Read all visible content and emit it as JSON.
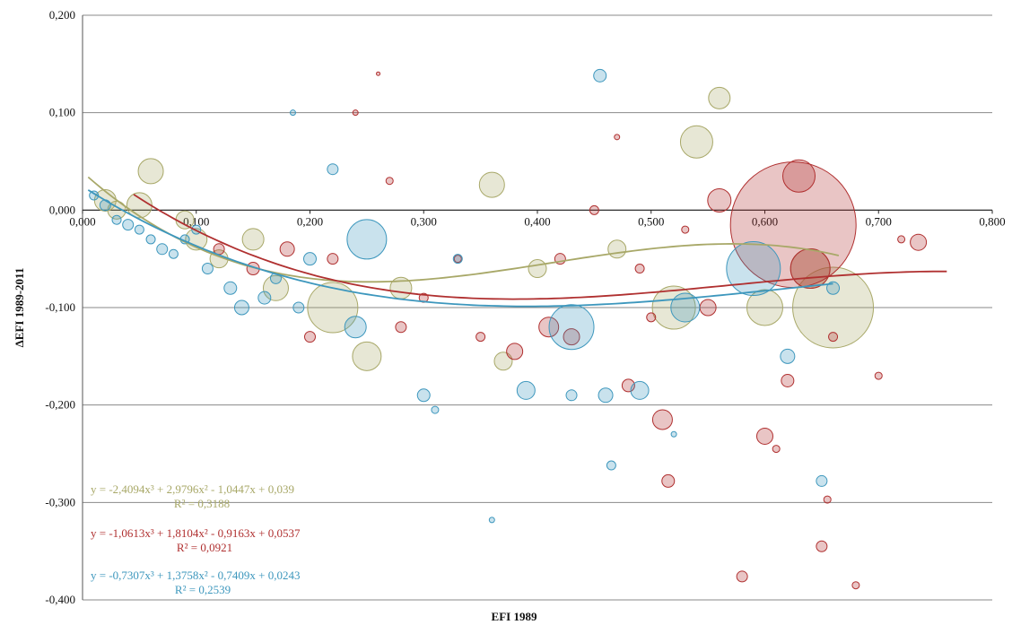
{
  "chart_data": {
    "type": "scatter",
    "xlabel": "EFI 1989",
    "ylabel": "ΔEFI 1989-2011",
    "xlim": [
      0,
      0.8
    ],
    "ylim": [
      -0.4,
      0.2
    ],
    "x_ticks": [
      "0,000",
      "0,100",
      "0,200",
      "0,300",
      "0,400",
      "0,500",
      "0,600",
      "0,700",
      "0,800"
    ],
    "y_ticks": [
      "0,200",
      "0,100",
      "0,000",
      "-0,100",
      "-0,200",
      "-0,300",
      "-0,400"
    ],
    "grid": "horizontal",
    "series": [
      {
        "color": "#a8a868",
        "trend": {
          "a": -2.4094,
          "b": 2.9796,
          "c": -1.0447,
          "d": 0.039,
          "x_range": [
            0.005,
            0.665
          ]
        },
        "equation": "y = -2,4094x³ + 2,9796x² - 1,0447x + 0,039",
        "r2": "R² = 0,3188",
        "points": [
          {
            "x": 0.02,
            "y": 0.01,
            "s": 12
          },
          {
            "x": 0.03,
            "y": 0.0,
            "s": 10
          },
          {
            "x": 0.05,
            "y": 0.005,
            "s": 14
          },
          {
            "x": 0.06,
            "y": 0.04,
            "s": 14
          },
          {
            "x": 0.09,
            "y": -0.01,
            "s": 10
          },
          {
            "x": 0.1,
            "y": -0.03,
            "s": 12
          },
          {
            "x": 0.12,
            "y": -0.05,
            "s": 10
          },
          {
            "x": 0.15,
            "y": -0.03,
            "s": 12
          },
          {
            "x": 0.17,
            "y": -0.08,
            "s": 14
          },
          {
            "x": 0.22,
            "y": -0.1,
            "s": 28
          },
          {
            "x": 0.25,
            "y": -0.15,
            "s": 16
          },
          {
            "x": 0.28,
            "y": -0.08,
            "s": 12
          },
          {
            "x": 0.36,
            "y": 0.026,
            "s": 14
          },
          {
            "x": 0.37,
            "y": -0.155,
            "s": 10
          },
          {
            "x": 0.4,
            "y": -0.06,
            "s": 10
          },
          {
            "x": 0.47,
            "y": -0.04,
            "s": 10
          },
          {
            "x": 0.52,
            "y": -0.1,
            "s": 24
          },
          {
            "x": 0.54,
            "y": 0.07,
            "s": 18
          },
          {
            "x": 0.56,
            "y": 0.115,
            "s": 12
          },
          {
            "x": 0.6,
            "y": -0.1,
            "s": 20
          },
          {
            "x": 0.66,
            "y": -0.1,
            "s": 45
          },
          {
            "x": 0.64,
            "y": -0.06,
            "s": 22
          }
        ]
      },
      {
        "color": "#b03030",
        "trend": {
          "a": -1.0613,
          "b": 1.8104,
          "c": -0.9163,
          "d": 0.0537,
          "x_range": [
            0.045,
            0.76
          ]
        },
        "equation": "y = -1,0613x³ + 1,8104x² - 0,9163x + 0,0537",
        "r2": "R² = 0,0921",
        "points": [
          {
            "x": 0.18,
            "y": -0.04,
            "s": 8
          },
          {
            "x": 0.22,
            "y": -0.05,
            "s": 6
          },
          {
            "x": 0.26,
            "y": 0.14,
            "s": 2
          },
          {
            "x": 0.24,
            "y": 0.1,
            "s": 3
          },
          {
            "x": 0.28,
            "y": -0.12,
            "s": 6
          },
          {
            "x": 0.3,
            "y": -0.09,
            "s": 5
          },
          {
            "x": 0.33,
            "y": -0.05,
            "s": 4
          },
          {
            "x": 0.35,
            "y": -0.13,
            "s": 5
          },
          {
            "x": 0.38,
            "y": -0.145,
            "s": 9
          },
          {
            "x": 0.41,
            "y": -0.12,
            "s": 11
          },
          {
            "x": 0.43,
            "y": -0.13,
            "s": 9
          },
          {
            "x": 0.45,
            "y": 0.0,
            "s": 5
          },
          {
            "x": 0.47,
            "y": 0.075,
            "s": 3
          },
          {
            "x": 0.48,
            "y": -0.18,
            "s": 7
          },
          {
            "x": 0.5,
            "y": -0.11,
            "s": 5
          },
          {
            "x": 0.51,
            "y": -0.215,
            "s": 11
          },
          {
            "x": 0.515,
            "y": -0.278,
            "s": 7
          },
          {
            "x": 0.53,
            "y": -0.02,
            "s": 4
          },
          {
            "x": 0.55,
            "y": -0.1,
            "s": 9
          },
          {
            "x": 0.56,
            "y": 0.01,
            "s": 13
          },
          {
            "x": 0.58,
            "y": -0.376,
            "s": 6
          },
          {
            "x": 0.6,
            "y": -0.232,
            "s": 9
          },
          {
            "x": 0.61,
            "y": -0.245,
            "s": 4
          },
          {
            "x": 0.62,
            "y": -0.175,
            "s": 7
          },
          {
            "x": 0.63,
            "y": 0.035,
            "s": 18
          },
          {
            "x": 0.625,
            "y": -0.015,
            "s": 70
          },
          {
            "x": 0.64,
            "y": -0.06,
            "s": 22
          },
          {
            "x": 0.65,
            "y": -0.345,
            "s": 6
          },
          {
            "x": 0.655,
            "y": -0.297,
            "s": 4
          },
          {
            "x": 0.66,
            "y": -0.13,
            "s": 5
          },
          {
            "x": 0.68,
            "y": -0.385,
            "s": 4
          },
          {
            "x": 0.7,
            "y": -0.17,
            "s": 4
          },
          {
            "x": 0.72,
            "y": -0.03,
            "s": 4
          },
          {
            "x": 0.735,
            "y": -0.033,
            "s": 9
          },
          {
            "x": 0.2,
            "y": -0.13,
            "s": 6
          },
          {
            "x": 0.15,
            "y": -0.06,
            "s": 7
          },
          {
            "x": 0.12,
            "y": -0.04,
            "s": 6
          },
          {
            "x": 0.27,
            "y": 0.03,
            "s": 4
          },
          {
            "x": 0.42,
            "y": -0.05,
            "s": 6
          },
          {
            "x": 0.49,
            "y": -0.06,
            "s": 5
          }
        ]
      },
      {
        "color": "#3d97bd",
        "trend": {
          "a": -0.7307,
          "b": 1.3758,
          "c": -0.7409,
          "d": 0.0243,
          "x_range": [
            0.005,
            0.66
          ]
        },
        "equation": "y = -0,7307x³ + 1,3758x² - 0,7409x + 0,0243",
        "r2": "R² = 0,2539",
        "points": [
          {
            "x": 0.01,
            "y": 0.015,
            "s": 5
          },
          {
            "x": 0.02,
            "y": 0.005,
            "s": 6
          },
          {
            "x": 0.03,
            "y": -0.01,
            "s": 5
          },
          {
            "x": 0.04,
            "y": -0.015,
            "s": 6
          },
          {
            "x": 0.05,
            "y": -0.02,
            "s": 5
          },
          {
            "x": 0.06,
            "y": -0.03,
            "s": 5
          },
          {
            "x": 0.07,
            "y": -0.04,
            "s": 6
          },
          {
            "x": 0.08,
            "y": -0.045,
            "s": 5
          },
          {
            "x": 0.09,
            "y": -0.03,
            "s": 5
          },
          {
            "x": 0.11,
            "y": -0.06,
            "s": 6
          },
          {
            "x": 0.13,
            "y": -0.08,
            "s": 7
          },
          {
            "x": 0.14,
            "y": -0.1,
            "s": 8
          },
          {
            "x": 0.16,
            "y": -0.09,
            "s": 7
          },
          {
            "x": 0.185,
            "y": 0.1,
            "s": 3
          },
          {
            "x": 0.19,
            "y": -0.1,
            "s": 6
          },
          {
            "x": 0.22,
            "y": 0.042,
            "s": 6
          },
          {
            "x": 0.25,
            "y": -0.03,
            "s": 22
          },
          {
            "x": 0.24,
            "y": -0.12,
            "s": 12
          },
          {
            "x": 0.3,
            "y": -0.19,
            "s": 7
          },
          {
            "x": 0.31,
            "y": -0.205,
            "s": 4
          },
          {
            "x": 0.33,
            "y": -0.05,
            "s": 5
          },
          {
            "x": 0.36,
            "y": -0.318,
            "s": 3
          },
          {
            "x": 0.39,
            "y": -0.185,
            "s": 10
          },
          {
            "x": 0.43,
            "y": -0.12,
            "s": 25
          },
          {
            "x": 0.43,
            "y": -0.19,
            "s": 6
          },
          {
            "x": 0.455,
            "y": 0.138,
            "s": 7
          },
          {
            "x": 0.46,
            "y": -0.19,
            "s": 8
          },
          {
            "x": 0.465,
            "y": -0.262,
            "s": 5
          },
          {
            "x": 0.49,
            "y": -0.185,
            "s": 10
          },
          {
            "x": 0.52,
            "y": -0.23,
            "s": 3
          },
          {
            "x": 0.53,
            "y": -0.1,
            "s": 16
          },
          {
            "x": 0.59,
            "y": -0.06,
            "s": 30
          },
          {
            "x": 0.62,
            "y": -0.15,
            "s": 8
          },
          {
            "x": 0.65,
            "y": -0.278,
            "s": 6
          },
          {
            "x": 0.66,
            "y": -0.08,
            "s": 7
          },
          {
            "x": 0.2,
            "y": -0.05,
            "s": 7
          },
          {
            "x": 0.1,
            "y": -0.02,
            "s": 5
          },
          {
            "x": 0.17,
            "y": -0.07,
            "s": 6
          }
        ]
      }
    ]
  }
}
